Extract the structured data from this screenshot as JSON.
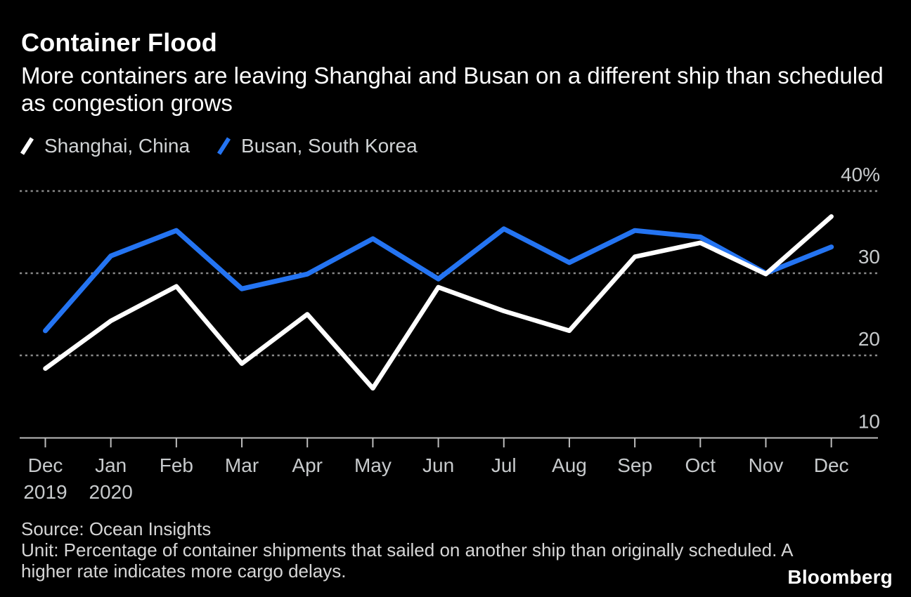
{
  "header": {
    "title": "Container Flood",
    "subtitle": "More containers are leaving Shanghai and Busan on a different ship than scheduled as congestion grows"
  },
  "legend": [
    {
      "label": "Shanghai, China",
      "color": "#ffffff"
    },
    {
      "label": "Busan, South Korea",
      "color": "#2474f2"
    }
  ],
  "chart_data": {
    "type": "line",
    "categories": [
      "Dec",
      "Jan",
      "Feb",
      "Mar",
      "Apr",
      "May",
      "Jun",
      "Jul",
      "Aug",
      "Sep",
      "Oct",
      "Nov",
      "Dec"
    ],
    "category_year_labels": {
      "0": "2019",
      "1": "2020"
    },
    "series": [
      {
        "name": "Shanghai, China",
        "color": "#ffffff",
        "values": [
          18.4,
          24.2,
          28.4,
          19.0,
          25.0,
          16.0,
          28.3,
          25.4,
          23.0,
          32.0,
          33.7,
          29.9,
          36.9
        ]
      },
      {
        "name": "Busan, South Korea",
        "color": "#2474f2",
        "values": [
          23.0,
          32.1,
          35.2,
          28.1,
          29.9,
          34.2,
          29.3,
          35.4,
          31.3,
          35.2,
          34.4,
          30.0,
          33.2
        ]
      }
    ],
    "yticks": [
      {
        "value": 40,
        "label": "40%"
      },
      {
        "value": 30,
        "label": "30"
      },
      {
        "value": 20,
        "label": "20"
      },
      {
        "value": 10,
        "label": "10"
      }
    ],
    "ylim": [
      10,
      40
    ],
    "grid": "horizontal-dotted",
    "legend_position": "top-left",
    "colors": {
      "background": "#000000",
      "gridline": "#8a8a8a",
      "axis": "#bcbcbc",
      "tick_label": "#c7cacc"
    }
  },
  "footer": {
    "source": "Source: Ocean Insights",
    "unit": "Unit: Percentage of container shipments that sailed on another ship than originally scheduled. A higher rate indicates more cargo delays.",
    "brand": "Bloomberg"
  }
}
